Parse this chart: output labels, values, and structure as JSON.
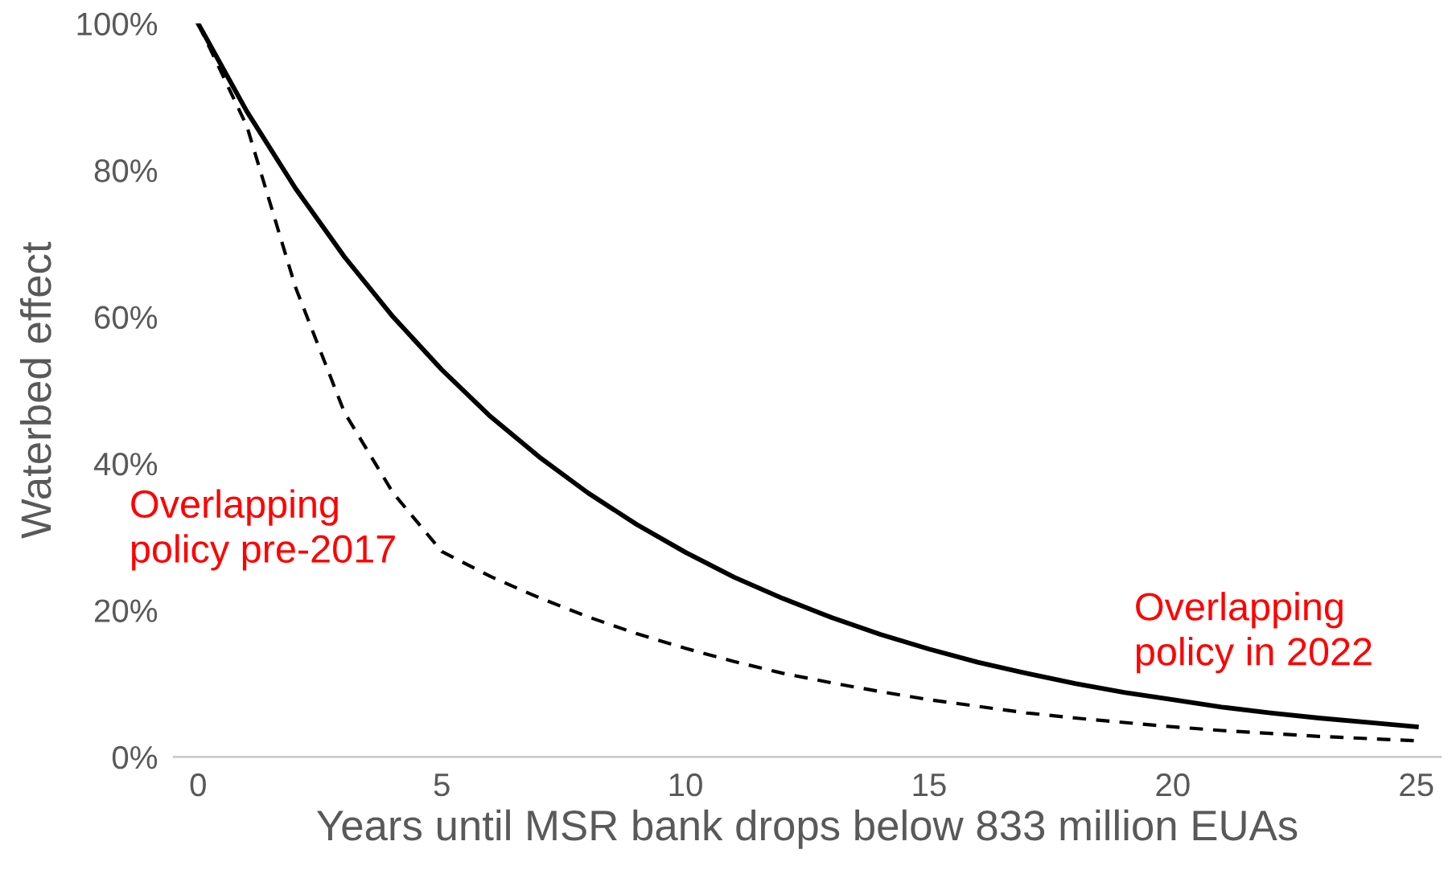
{
  "chart_data": {
    "type": "line",
    "xlabel": "Years until MSR bank drops below 833 million EUAs",
    "ylabel": "Waterbed effect",
    "x": [
      0,
      1,
      2,
      3,
      4,
      5,
      6,
      7,
      8,
      9,
      10,
      11,
      12,
      13,
      14,
      15,
      16,
      17,
      18,
      19,
      20,
      21,
      22,
      23,
      24,
      25
    ],
    "series": [
      {
        "color": "#000000",
        "line_style": "solid",
        "values": [
          100,
          88,
          77.5,
          68.2,
          60,
          52.8,
          46.4,
          40.9,
          36,
          31.7,
          27.9,
          24.5,
          21.6,
          19,
          16.7,
          14.7,
          12.9,
          11.4,
          10,
          8.8,
          7.8,
          6.8,
          6,
          5.3,
          4.7,
          4.1
        ]
      },
      {
        "color": "#000000",
        "line_style": "dashed",
        "values": [
          100,
          86,
          64,
          47,
          36,
          28,
          24.6,
          21.7,
          19.1,
          16.8,
          14.8,
          13,
          11.4,
          10.1,
          8.9,
          7.8,
          6.9,
          6,
          5.3,
          4.7,
          4.1,
          3.6,
          3.2,
          2.8,
          2.5,
          2.2
        ]
      }
    ],
    "xlim": [
      -0.5,
      25.5
    ],
    "xticks": [
      0,
      5,
      10,
      15,
      20,
      25
    ],
    "ylim": [
      0,
      100
    ],
    "yticks": [
      {
        "value": 0,
        "label": "0%"
      },
      {
        "value": 20,
        "label": "20%"
      },
      {
        "value": 40,
        "label": "40%"
      },
      {
        "value": 60,
        "label": "60%"
      },
      {
        "value": 80,
        "label": "80%"
      },
      {
        "value": 100,
        "label": "100%"
      }
    ],
    "grid": false,
    "legend": false,
    "annotations": [
      "Overlapping\npolicy pre-2017",
      "Overlapping\npolicy in 2022"
    ]
  }
}
